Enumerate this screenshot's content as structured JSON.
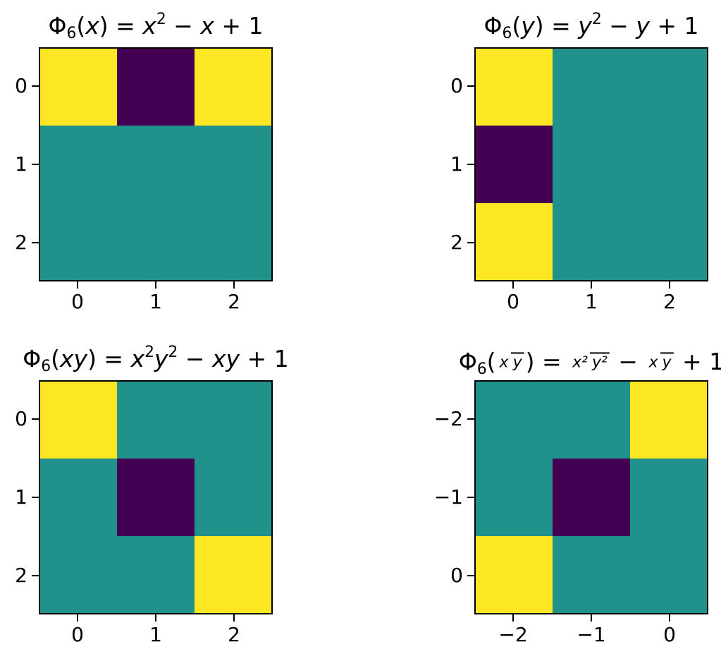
{
  "colors": {
    "value_colors": {
      "-1": "#440154",
      "0": "#21918c",
      "1": "#fde725"
    },
    "axis": "#000000",
    "background": "#ffffff"
  },
  "chart_data": [
    {
      "type": "heatmap",
      "title": "Φ₆(x) = x² − x + 1",
      "title_segments": {
        "phi": "Φ",
        "sub": "6",
        "open": "(",
        "arg": "x",
        "close_eq": ") = ",
        "t1": "x",
        "t1_sup": "2",
        "minus": " − ",
        "t2": "x",
        "plus_one": " + 1"
      },
      "x_ticks": [
        "0",
        "1",
        "2"
      ],
      "y_ticks": [
        "0",
        "1",
        "2"
      ],
      "matrix": [
        [
          1,
          -1,
          1
        ],
        [
          0,
          0,
          0
        ],
        [
          0,
          0,
          0
        ]
      ],
      "colormap": "viridis",
      "value_range": [
        -1,
        1
      ]
    },
    {
      "type": "heatmap",
      "title": "Φ₆(y) = y² − y + 1",
      "title_segments": {
        "phi": "Φ",
        "sub": "6",
        "open": "(",
        "arg": "y",
        "close_eq": ") = ",
        "t1": "y",
        "t1_sup": "2",
        "minus": " − ",
        "t2": "y",
        "plus_one": " + 1"
      },
      "x_ticks": [
        "0",
        "1",
        "2"
      ],
      "y_ticks": [
        "0",
        "1",
        "2"
      ],
      "matrix": [
        [
          1,
          0,
          0
        ],
        [
          -1,
          0,
          0
        ],
        [
          1,
          0,
          0
        ]
      ],
      "colormap": "viridis",
      "value_range": [
        -1,
        1
      ]
    },
    {
      "type": "heatmap",
      "title": "Φ₆(xy) = x²y² − xy + 1",
      "title_segments": {
        "phi": "Φ",
        "sub": "6",
        "open": "(",
        "arg": "xy",
        "close_eq": ") = ",
        "t1": "x",
        "t1_sup": "2",
        "t2": "y",
        "t2_sup": "2",
        "minus": " − ",
        "t3": "xy",
        "plus_one": " + 1"
      },
      "x_ticks": [
        "0",
        "1",
        "2"
      ],
      "y_ticks": [
        "0",
        "1",
        "2"
      ],
      "matrix": [
        [
          1,
          0,
          0
        ],
        [
          0,
          -1,
          0
        ],
        [
          0,
          0,
          1
        ]
      ],
      "colormap": "viridis",
      "value_range": [
        -1,
        1
      ]
    },
    {
      "type": "heatmap",
      "title": "Φ₆(x/y) = x²/y² − x/y + 1",
      "title_segments": {
        "phi": "Φ",
        "sub": "6",
        "open": "(",
        "frac0_num": "x",
        "frac0_den": "y",
        "close_eq": ") = ",
        "frac1_num": "x²",
        "frac1_den": "y²",
        "minus": " − ",
        "frac2_num": "x",
        "frac2_den": "y",
        "plus_one": " + 1"
      },
      "x_ticks": [
        "−2",
        "−1",
        "0"
      ],
      "y_ticks": [
        "−2",
        "−1",
        "0"
      ],
      "matrix": [
        [
          0,
          0,
          1
        ],
        [
          0,
          -1,
          0
        ],
        [
          1,
          0,
          0
        ]
      ],
      "colormap": "viridis",
      "value_range": [
        -1,
        1
      ]
    }
  ]
}
